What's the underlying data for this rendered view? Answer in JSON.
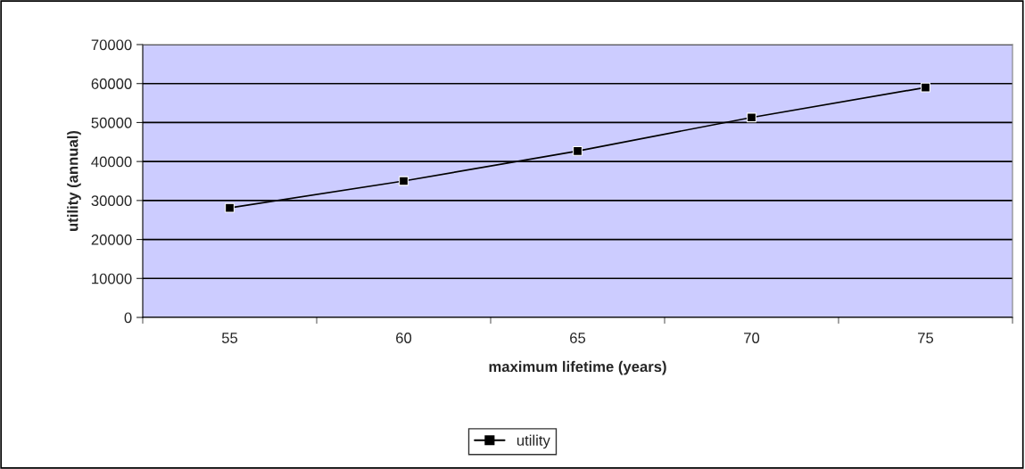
{
  "chart_data": {
    "type": "line",
    "xlabel": "maximum lifetime (years)",
    "ylabel": "utility (annual)",
    "categories": [
      "55",
      "60",
      "65",
      "70",
      "75"
    ],
    "series": [
      {
        "name": "utility",
        "color": "#000000",
        "values": [
          28100,
          35000,
          42700,
          51300,
          59000
        ]
      }
    ],
    "ylim": [
      0,
      70000
    ],
    "yticks": [
      0,
      10000,
      20000,
      30000,
      40000,
      50000,
      60000,
      70000
    ],
    "grid": "y",
    "legend": "bottom",
    "marker": "square",
    "line_style": "solid"
  }
}
